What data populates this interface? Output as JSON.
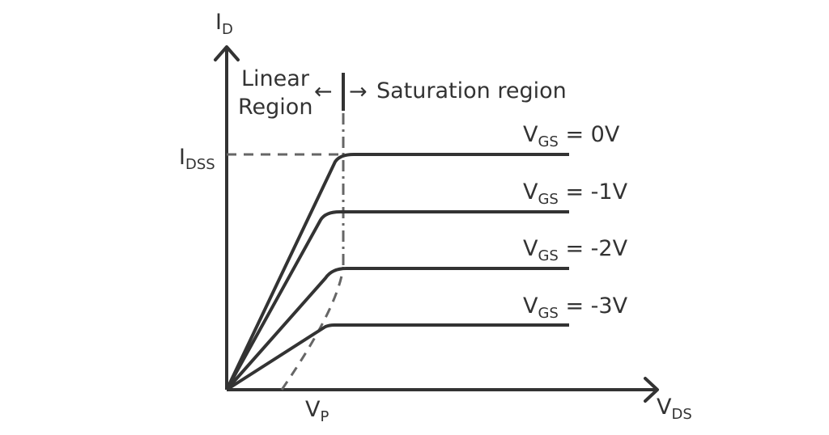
{
  "colors": {
    "line": "#333333",
    "dashed": "#666666",
    "background": "#ffffff"
  },
  "axes": {
    "y": {
      "main": "I",
      "sub": "D"
    },
    "x": {
      "main": "V",
      "sub": "DS"
    },
    "idss": {
      "main": "I",
      "sub": "DSS"
    },
    "vp": {
      "main": "V",
      "sub": "P"
    }
  },
  "regions": {
    "linear_line1": "Linear",
    "linear_line2": "Region",
    "saturation": "Saturation region",
    "left_arrow": "←",
    "right_arrow": "→"
  },
  "curves": [
    {
      "main": "V",
      "sub": "GS",
      "value": " = 0V"
    },
    {
      "main": "V",
      "sub": "GS",
      "value": " = -1V"
    },
    {
      "main": "V",
      "sub": "GS",
      "value": " = -2V"
    },
    {
      "main": "V",
      "sub": "GS",
      "value": " = -3V"
    }
  ]
}
